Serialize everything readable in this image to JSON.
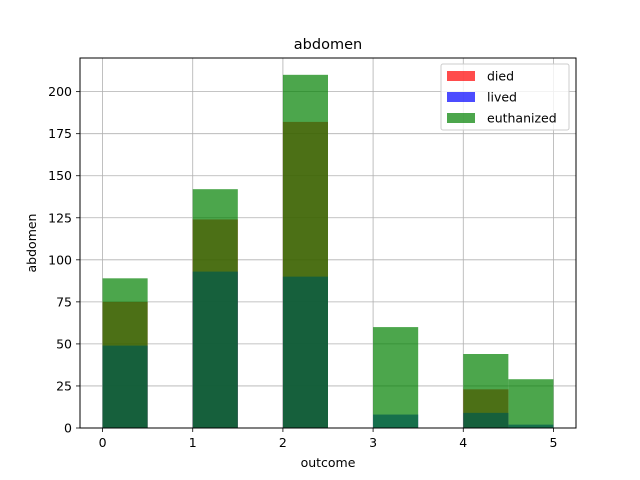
{
  "chart_data": {
    "type": "bar",
    "title": "abdomen",
    "xlabel": "outcome",
    "ylabel": "abdomen",
    "xlim": [
      -0.25,
      5.25
    ],
    "ylim": [
      0,
      220
    ],
    "xticks": [
      0,
      1,
      2,
      3,
      4,
      5
    ],
    "yticks": [
      0,
      25,
      50,
      75,
      100,
      125,
      150,
      175,
      200
    ],
    "grid": true,
    "legend_position": "upper-right",
    "bin_edges": [
      0.0,
      0.5,
      1.0,
      1.5,
      2.0,
      2.5,
      3.0,
      3.5,
      4.0,
      4.5,
      5.0
    ],
    "series": [
      {
        "name": "died",
        "color": "#ff0000",
        "opacity": 0.7,
        "values": [
          75,
          0,
          124,
          0,
          182,
          0,
          0,
          0,
          23,
          0
        ]
      },
      {
        "name": "lived",
        "color": "#0000ff",
        "opacity": 0.7,
        "values": [
          49,
          0,
          93,
          0,
          90,
          0,
          8,
          0,
          9,
          2
        ]
      },
      {
        "name": "euthanized",
        "color": "#008000",
        "opacity": 0.7,
        "values": [
          89,
          0,
          142,
          0,
          210,
          0,
          60,
          0,
          44,
          29
        ]
      }
    ]
  }
}
